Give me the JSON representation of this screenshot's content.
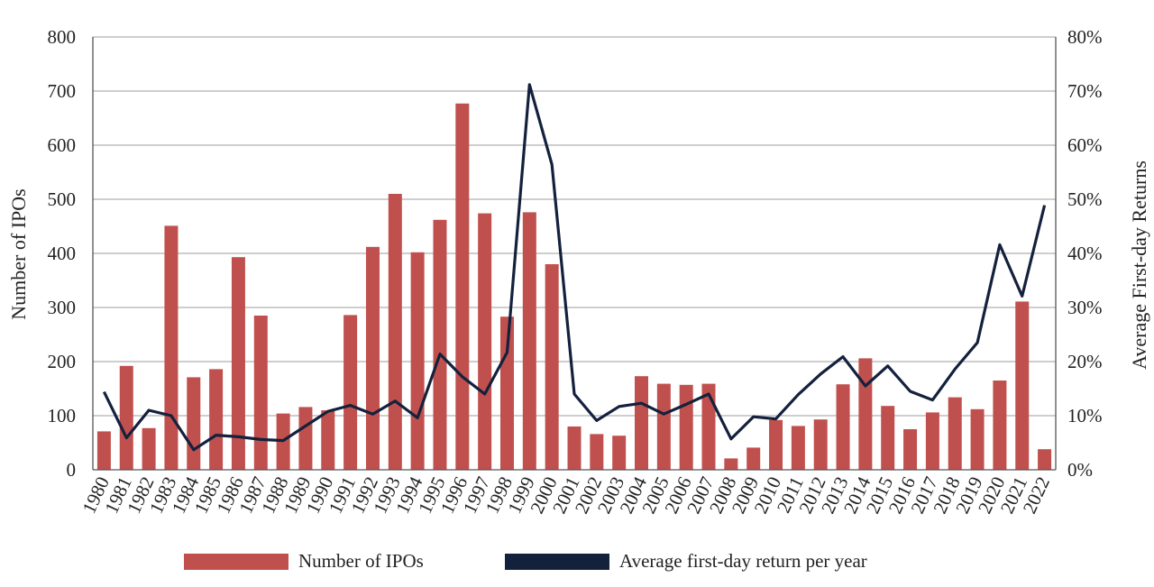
{
  "chart_data": {
    "type": "bar",
    "title": "",
    "categories": [
      "1980",
      "1981",
      "1982",
      "1983",
      "1984",
      "1985",
      "1986",
      "1987",
      "1988",
      "1989",
      "1990",
      "1991",
      "1992",
      "1993",
      "1994",
      "1995",
      "1996",
      "1997",
      "1998",
      "1999",
      "2000",
      "2001",
      "2002",
      "2003",
      "2004",
      "2005",
      "2006",
      "2007",
      "2008",
      "2009",
      "2010",
      "2011",
      "2012",
      "2013",
      "2014",
      "2015",
      "2016",
      "2017",
      "2018",
      "2019",
      "2020",
      "2021",
      "2022"
    ],
    "series": [
      {
        "name": "Number of IPOs",
        "kind": "bar",
        "axis": "left",
        "values": [
          71,
          192,
          77,
          451,
          171,
          186,
          393,
          285,
          104,
          116,
          110,
          286,
          412,
          510,
          402,
          462,
          677,
          474,
          283,
          476,
          380,
          80,
          66,
          63,
          173,
          159,
          157,
          159,
          21,
          41,
          92,
          81,
          93,
          158,
          206,
          118,
          75,
          106,
          134,
          112,
          165,
          311,
          38
        ]
      },
      {
        "name": "Average first-day return per year",
        "kind": "line",
        "axis": "right",
        "values": [
          14.4,
          5.9,
          11.0,
          10.0,
          3.7,
          6.4,
          6.1,
          5.6,
          5.4,
          8.1,
          10.8,
          11.9,
          10.3,
          12.7,
          9.6,
          21.4,
          17.2,
          14.0,
          21.7,
          71.2,
          56.4,
          14.0,
          9.1,
          11.7,
          12.3,
          10.3,
          12.1,
          14.0,
          5.7,
          9.8,
          9.4,
          13.9,
          17.7,
          20.9,
          15.5,
          19.2,
          14.5,
          12.9,
          18.6,
          23.5,
          41.6,
          32.1,
          48.9
        ]
      }
    ],
    "ylabel": "Number of IPOs",
    "ylabel_right": "Average First-day Returns",
    "ylim": [
      0,
      800
    ],
    "yticks": [
      "0",
      "100",
      "200",
      "300",
      "400",
      "500",
      "600",
      "700",
      "800"
    ],
    "ylim_right": [
      0,
      80
    ],
    "yticks_right": [
      "0%",
      "10%",
      "20%",
      "30%",
      "40%",
      "50%",
      "60%",
      "70%",
      "80%"
    ],
    "grid": true,
    "legend_position": "bottom"
  },
  "colors": {
    "bar": "#c0504d",
    "line": "#14213d",
    "grid": "#b0b0b0",
    "axis": "#555555"
  }
}
